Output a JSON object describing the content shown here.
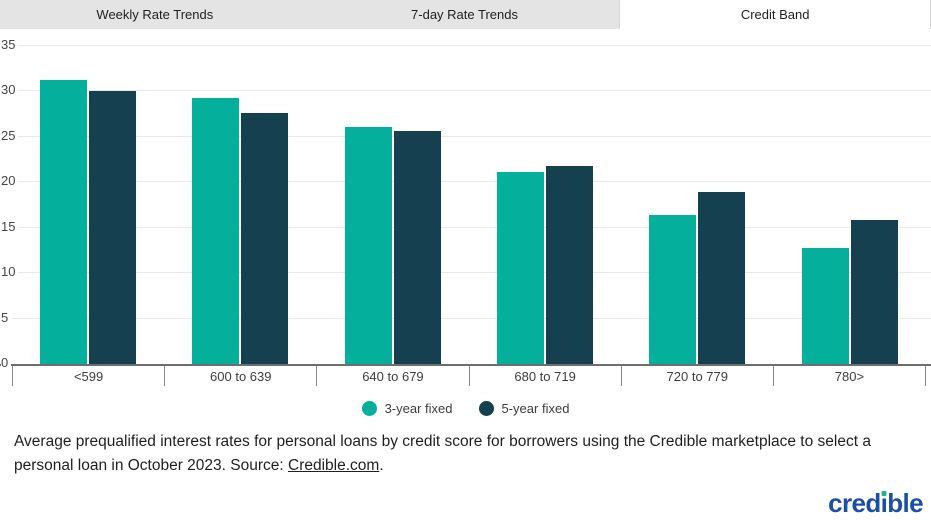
{
  "tabs": [
    {
      "label": "Weekly Rate Trends",
      "active": false
    },
    {
      "label": "7-day Rate Trends",
      "active": false
    },
    {
      "label": "Credit Band",
      "active": true
    }
  ],
  "chart_data": {
    "type": "bar",
    "title": "",
    "xlabel": "",
    "ylabel": "",
    "categories": [
      "<599",
      "600 to 639",
      "640 to 679",
      "680 to 719",
      "720 to 779",
      "780>"
    ],
    "series": [
      {
        "name": "3-year fixed",
        "color": "#04b09c",
        "values": [
          31.3,
          29.3,
          26.1,
          21.1,
          16.4,
          12.8
        ]
      },
      {
        "name": "5-year fixed",
        "color": "#14404f",
        "values": [
          30.1,
          27.6,
          25.6,
          21.8,
          18.9,
          15.9
        ]
      }
    ],
    "ylim": [
      0,
      35
    ],
    "yticks": [
      0,
      5,
      10,
      15,
      20,
      25,
      30,
      35
    ],
    "grid": true,
    "legend_position": "bottom"
  },
  "caption": {
    "before": "Average prequalified interest rates for personal loans by credit score for borrowers using the Credible marketplace to select a personal loan in October 2023. Source: ",
    "link": "Credible.com",
    "after": "."
  },
  "logo": {
    "text": "credible",
    "blue": "#1b4fa5",
    "dot_green": "#21b19b"
  }
}
